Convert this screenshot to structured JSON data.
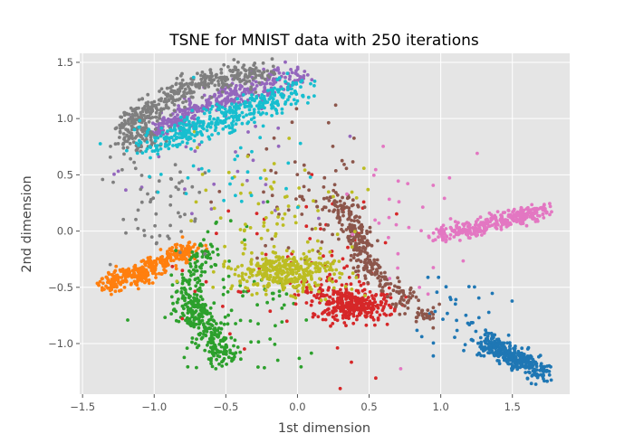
{
  "chart_data": {
    "type": "scatter",
    "title": "TSNE for MNIST data with 250 iterations",
    "xlabel": "1st dimension",
    "ylabel": "2nd dimension",
    "xlim": [
      -1.52,
      1.9
    ],
    "ylim": [
      -1.45,
      1.58
    ],
    "xticks": [
      -1.5,
      -1.0,
      -0.5,
      0.0,
      0.5,
      1.0,
      1.5
    ],
    "xtick_labels": [
      "−1.5",
      "−1.0",
      "−0.5",
      "0.0",
      "0.5",
      "1.0",
      "1.5"
    ],
    "yticks": [
      -1.0,
      -0.5,
      0.0,
      0.5,
      1.0,
      1.5
    ],
    "ytick_labels": [
      "−1.0",
      "−0.5",
      "0.0",
      "0.5",
      "1.0",
      "1.5"
    ],
    "grid": true,
    "style": "ggplot",
    "series": [
      {
        "color": "#1f77b4",
        "clusters": [
          {
            "shape": "segment",
            "from": [
              1.28,
              -0.97
            ],
            "to": [
              1.73,
              -1.27
            ],
            "spread": 0.045,
            "n": 360
          },
          {
            "shape": "blob",
            "center": [
              1.1,
              -0.75
            ],
            "sd": [
              0.18,
              0.18
            ],
            "n": 40
          }
        ]
      },
      {
        "color": "#ff7f0e",
        "clusters": [
          {
            "shape": "segment",
            "from": [
              -1.35,
              -0.49
            ],
            "to": [
              -0.72,
              -0.15
            ],
            "spread": 0.04,
            "n": 330
          },
          {
            "shape": "blob",
            "center": [
              -1.15,
              -0.4
            ],
            "sd": [
              0.1,
              0.05
            ],
            "n": 40
          }
        ]
      },
      {
        "color": "#2ca02c",
        "clusters": [
          {
            "shape": "segment",
            "from": [
              -0.75,
              -0.6
            ],
            "to": [
              -0.5,
              -1.14
            ],
            "spread": 0.06,
            "n": 260
          },
          {
            "shape": "segment",
            "from": [
              -0.62,
              -0.15
            ],
            "to": [
              -0.85,
              -0.65
            ],
            "spread": 0.05,
            "n": 90
          },
          {
            "shape": "blob",
            "center": [
              -0.45,
              -0.7
            ],
            "sd": [
              0.25,
              0.35
            ],
            "n": 90
          }
        ]
      },
      {
        "color": "#d62728",
        "clusters": [
          {
            "shape": "blob",
            "center": [
              0.4,
              -0.66
            ],
            "sd": [
              0.13,
              0.07
            ],
            "n": 300
          },
          {
            "shape": "blob",
            "center": [
              0.2,
              -0.5
            ],
            "sd": [
              0.15,
              0.12
            ],
            "n": 70
          },
          {
            "shape": "blob",
            "center": [
              0.0,
              -0.3
            ],
            "sd": [
              0.45,
              0.45
            ],
            "n": 50
          }
        ]
      },
      {
        "color": "#9467bd",
        "clusters": [
          {
            "shape": "arc",
            "from": [
              -1.0,
              0.9
            ],
            "mid": [
              -0.55,
              1.22
            ],
            "to": [
              0.02,
              1.38
            ],
            "spread": 0.05,
            "n": 380
          },
          {
            "shape": "blob",
            "center": [
              -0.4,
              0.6
            ],
            "sd": [
              0.4,
              0.35
            ],
            "n": 30
          }
        ]
      },
      {
        "color": "#8c564b",
        "clusters": [
          {
            "shape": "segment",
            "from": [
              0.28,
              0.3
            ],
            "to": [
              0.52,
              -0.35
            ],
            "spread": 0.05,
            "n": 200
          },
          {
            "shape": "segment",
            "from": [
              0.45,
              -0.3
            ],
            "to": [
              0.9,
              -0.77
            ],
            "spread": 0.045,
            "n": 110
          },
          {
            "shape": "blob",
            "center": [
              0.1,
              0.3
            ],
            "sd": [
              0.25,
              0.35
            ],
            "n": 60
          }
        ]
      },
      {
        "color": "#e377c2",
        "clusters": [
          {
            "shape": "segment",
            "from": [
              0.98,
              -0.05
            ],
            "to": [
              1.73,
              0.19
            ],
            "spread": 0.038,
            "n": 340
          },
          {
            "shape": "blob",
            "center": [
              0.75,
              0.05
            ],
            "sd": [
              0.25,
              0.35
            ],
            "n": 30
          }
        ]
      },
      {
        "color": "#7f7f7f",
        "clusters": [
          {
            "shape": "arc",
            "from": [
              -1.2,
              0.9
            ],
            "mid": [
              -0.95,
              1.3
            ],
            "to": [
              -0.2,
              1.44
            ],
            "spread": 0.05,
            "n": 380
          },
          {
            "shape": "blob",
            "center": [
              -1.1,
              0.85
            ],
            "sd": [
              0.08,
              0.08
            ],
            "n": 100
          },
          {
            "shape": "blob",
            "center": [
              -1.0,
              0.3
            ],
            "sd": [
              0.18,
              0.3
            ],
            "n": 60
          }
        ]
      },
      {
        "color": "#bcbd22",
        "clusters": [
          {
            "shape": "blob",
            "center": [
              -0.1,
              -0.37
            ],
            "sd": [
              0.18,
              0.09
            ],
            "n": 340
          },
          {
            "shape": "blob",
            "center": [
              -0.15,
              0.1
            ],
            "sd": [
              0.3,
              0.35
            ],
            "n": 90
          }
        ]
      },
      {
        "color": "#17becf",
        "clusters": [
          {
            "shape": "arc",
            "from": [
              -1.05,
              0.75
            ],
            "mid": [
              -0.55,
              1.0
            ],
            "to": [
              0.05,
              1.28
            ],
            "spread": 0.06,
            "n": 380
          },
          {
            "shape": "blob",
            "center": [
              -0.45,
              0.7
            ],
            "sd": [
              0.35,
              0.25
            ],
            "n": 40
          }
        ]
      }
    ]
  }
}
